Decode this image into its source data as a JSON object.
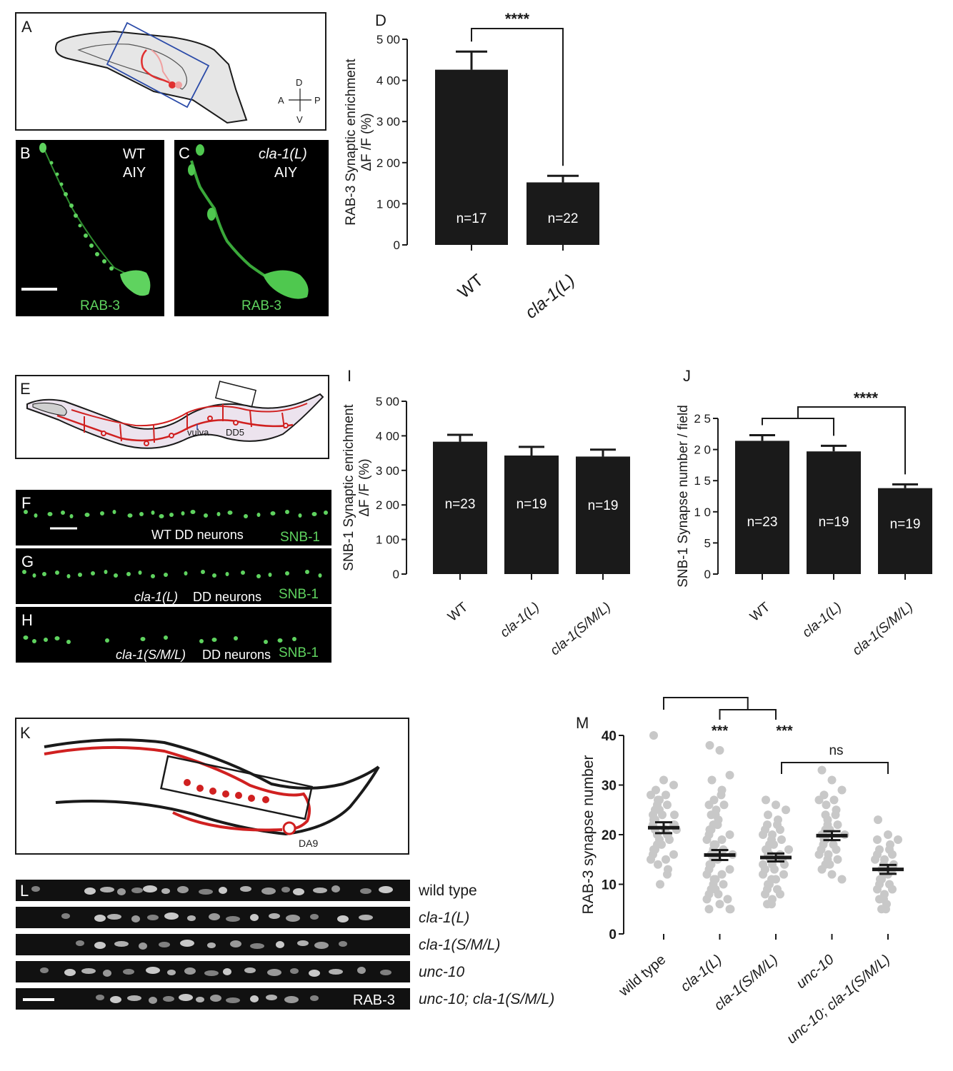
{
  "panels": {
    "A": {
      "letter": "A",
      "compass": {
        "d": "D",
        "v": "V",
        "a": "A",
        "p": "P"
      }
    },
    "B": {
      "letter": "B",
      "line1": "WT",
      "line2": "AIY",
      "marker": "RAB-3"
    },
    "C": {
      "letter": "C",
      "line1": "cla-1(L)",
      "line2": "AIY",
      "marker": "RAB-3"
    },
    "E": {
      "letter": "E",
      "vulva": "vulva",
      "neuron": "DD5"
    },
    "F": {
      "letter": "F",
      "label": "WT DD neurons",
      "marker": "SNB-1"
    },
    "G": {
      "letter": "G",
      "genotype": "cla-1(L)",
      "label": "DD neurons",
      "marker": "SNB-1"
    },
    "H": {
      "letter": "H",
      "genotype": "cla-1(S/M/L)",
      "label": "DD neurons",
      "marker": "SNB-1"
    },
    "K": {
      "letter": "K",
      "neuron": "DA9"
    },
    "L": {
      "letter": "L",
      "marker": "RAB-3",
      "rows": [
        {
          "label": "wild type",
          "italic": false
        },
        {
          "label": "cla-1(L)",
          "italic": true
        },
        {
          "label": "cla-1(S/M/L)",
          "italic": true
        },
        {
          "label": "unc-10",
          "italic": true
        },
        {
          "label": "unc-10; cla-1(S/M/L)",
          "italic": true
        }
      ]
    }
  },
  "chart_data": [
    {
      "panel": "D",
      "type": "bar",
      "ylabel_line1": "RAB-3 Synaptic enrichment",
      "ylabel_line2": "ΔF /F (%)",
      "categories": [
        "WT",
        "cla-1(L)"
      ],
      "categories_italic": [
        false,
        true
      ],
      "values": [
        426,
        152
      ],
      "errors": [
        44,
        16
      ],
      "n_labels": [
        "n=17",
        "n=22"
      ],
      "ylim": [
        0,
        500
      ],
      "yticks": [
        0,
        100,
        200,
        300,
        400,
        500
      ],
      "ytick_labels": [
        "0",
        "1 00",
        "2 00",
        "3 00",
        "4 00",
        "5 00"
      ],
      "significance": "****"
    },
    {
      "panel": "I",
      "type": "bar",
      "ylabel_line1": "SNB-1 Synaptic enrichment",
      "ylabel_line2": "ΔF /F (%)",
      "categories": [
        "WT",
        "cla-1(L)",
        "cla-1(S/M/L)"
      ],
      "categories_italic": [
        false,
        true,
        true
      ],
      "values": [
        383,
        343,
        340
      ],
      "errors": [
        20,
        25,
        20
      ],
      "n_labels": [
        "n=23",
        "n=19",
        "n=19"
      ],
      "ylim": [
        0,
        500
      ],
      "yticks": [
        0,
        100,
        200,
        300,
        400,
        500
      ],
      "ytick_labels": [
        "0",
        "1 00",
        "2 00",
        "3 00",
        "4 00",
        "5 00"
      ]
    },
    {
      "panel": "J",
      "type": "bar",
      "ylabel": "SNB-1 Synapse number / field",
      "categories": [
        "WT",
        "cla-1(L)",
        "cla-1(S/M/L)"
      ],
      "categories_italic": [
        false,
        true,
        true
      ],
      "values": [
        21.4,
        19.7,
        13.8
      ],
      "errors": [
        0.9,
        0.9,
        0.6
      ],
      "n_labels": [
        "n=23",
        "n=19",
        "n=19"
      ],
      "ylim": [
        0,
        25
      ],
      "yticks": [
        0,
        5,
        10,
        15,
        20,
        25
      ],
      "ytick_labels": [
        "0",
        "5",
        "1 0",
        "1 5",
        "2 0",
        "2 5"
      ],
      "significance": "****"
    },
    {
      "panel": "M",
      "type": "scatter",
      "ylabel": "RAB-3 synapse number",
      "categories": [
        "wild type",
        "cla-1(L)",
        "cla-1(S/M/L)",
        "unc-10",
        "unc-10; cla-1(S/M/L)"
      ],
      "categories_italic": [
        false,
        true,
        true,
        true,
        true
      ],
      "means": [
        21.4,
        15.9,
        15.4,
        19.8,
        13.0
      ],
      "sem": [
        1.1,
        1.0,
        0.8,
        0.9,
        0.9
      ],
      "points": [
        [
          40,
          31,
          30,
          29,
          28,
          28,
          27,
          27,
          26,
          26,
          25,
          25,
          24,
          24,
          24,
          23,
          23,
          22,
          22,
          22,
          21,
          21,
          21,
          20,
          20,
          20,
          19,
          19,
          18,
          18,
          17,
          17,
          16,
          16,
          15,
          15,
          14,
          13,
          12,
          10
        ],
        [
          38,
          37,
          32,
          31,
          29,
          28,
          27,
          26,
          26,
          25,
          24,
          24,
          23,
          22,
          22,
          21,
          21,
          20,
          20,
          19,
          19,
          18,
          18,
          17,
          17,
          16,
          16,
          16,
          15,
          15,
          14,
          14,
          13,
          13,
          12,
          12,
          11,
          11,
          10,
          10,
          9,
          9,
          8,
          8,
          7,
          7,
          6,
          5,
          5,
          5
        ],
        [
          27,
          26,
          25,
          24,
          23,
          22,
          22,
          21,
          21,
          20,
          20,
          19,
          19,
          18,
          18,
          17,
          17,
          17,
          16,
          16,
          16,
          15,
          15,
          15,
          14,
          14,
          14,
          13,
          13,
          12,
          12,
          11,
          11,
          10,
          10,
          9,
          9,
          8,
          8,
          7,
          6,
          6
        ],
        [
          33,
          31,
          29,
          28,
          27,
          27,
          26,
          25,
          24,
          24,
          23,
          22,
          22,
          21,
          21,
          20,
          20,
          20,
          19,
          19,
          18,
          18,
          17,
          17,
          16,
          16,
          15,
          15,
          14,
          14,
          13,
          12,
          11
        ],
        [
          23,
          20,
          19,
          19,
          18,
          17,
          17,
          16,
          16,
          15,
          15,
          14,
          14,
          13,
          13,
          13,
          12,
          12,
          11,
          11,
          10,
          10,
          9,
          9,
          8,
          7,
          7,
          6,
          5,
          5
        ]
      ],
      "ylim": [
        0,
        40
      ],
      "yticks": [
        0,
        10,
        20,
        30,
        40
      ],
      "ytick_labels": [
        "0",
        "10",
        "20",
        "30",
        "40"
      ],
      "significance": [
        "***",
        "***",
        "ns"
      ]
    }
  ],
  "colors": {
    "bar": "#1a1a1a",
    "dots": "#c8c8c8",
    "green": "#5fd35f",
    "red": "#e03030",
    "worm_fill": "#e8e8e8",
    "worm_fill_pink": "#ece3ee",
    "box_blue": "#2a4aa8"
  }
}
